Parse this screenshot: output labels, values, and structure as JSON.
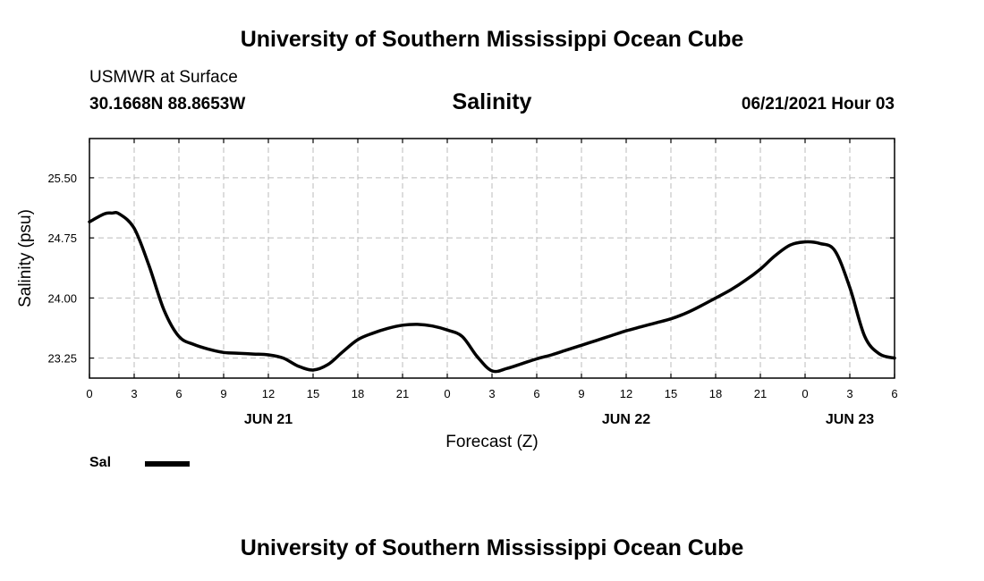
{
  "header": {
    "title_top": "University of Southern Mississippi Ocean Cube",
    "station_name": "USMWR at Surface",
    "coordinates": "30.1668N  88.8653W",
    "chart_title": "Salinity",
    "datetime": "06/21/2021 Hour 03"
  },
  "footer": {
    "title_bottom": "University of Southern Mississippi Ocean Cube"
  },
  "legend": {
    "label": "Sal",
    "color": "#000000"
  },
  "chart_data": {
    "type": "line",
    "title": "Salinity",
    "xlabel": "Forecast (Z)",
    "ylabel": "Salinity (psu)",
    "ylim": [
      23.0,
      25.99
    ],
    "xlim": [
      0,
      54
    ],
    "grid": true,
    "grid_style": "dashed",
    "legend_position": "bottom-left",
    "x_tick_labels": [
      "0",
      "3",
      "6",
      "9",
      "12",
      "15",
      "18",
      "21",
      "0",
      "3",
      "6",
      "9",
      "12",
      "15",
      "18",
      "21",
      "0",
      "3",
      "6"
    ],
    "y_tick_labels": [
      "25.50",
      "24.75",
      "24.00",
      "23.25"
    ],
    "y_tick_values": [
      25.5,
      24.75,
      24.0,
      23.25
    ],
    "day_labels": [
      {
        "hour": 12,
        "label": "JUN 21"
      },
      {
        "hour": 36,
        "label": "JUN 22"
      },
      {
        "hour": 51,
        "label": "JUN 23"
      }
    ],
    "series": [
      {
        "name": "Sal",
        "color": "#000000",
        "x": [
          0,
          1,
          1.5,
          2,
          3,
          4,
          5,
          6,
          7,
          8,
          9,
          10,
          11,
          12,
          13,
          14,
          15,
          16,
          17,
          18,
          19,
          20,
          21,
          22,
          23,
          24,
          25,
          26,
          27,
          28,
          29,
          30,
          31,
          32,
          33,
          34,
          35,
          36,
          37,
          38,
          39,
          40,
          41,
          42,
          43,
          44,
          45,
          46,
          47,
          48,
          49,
          50,
          51,
          52,
          53,
          54
        ],
        "values": [
          24.95,
          25.05,
          25.06,
          25.05,
          24.87,
          24.4,
          23.85,
          23.52,
          23.42,
          23.36,
          23.32,
          23.31,
          23.3,
          23.29,
          23.25,
          23.15,
          23.1,
          23.17,
          23.33,
          23.48,
          23.56,
          23.62,
          23.66,
          23.67,
          23.65,
          23.6,
          23.52,
          23.27,
          23.09,
          23.12,
          23.18,
          23.24,
          23.29,
          23.35,
          23.41,
          23.47,
          23.53,
          23.59,
          23.64,
          23.69,
          23.74,
          23.81,
          23.9,
          24.0,
          24.1,
          24.22,
          24.36,
          24.53,
          24.66,
          24.7,
          24.68,
          24.59,
          24.13,
          23.52,
          23.3,
          23.25
        ]
      }
    ]
  }
}
